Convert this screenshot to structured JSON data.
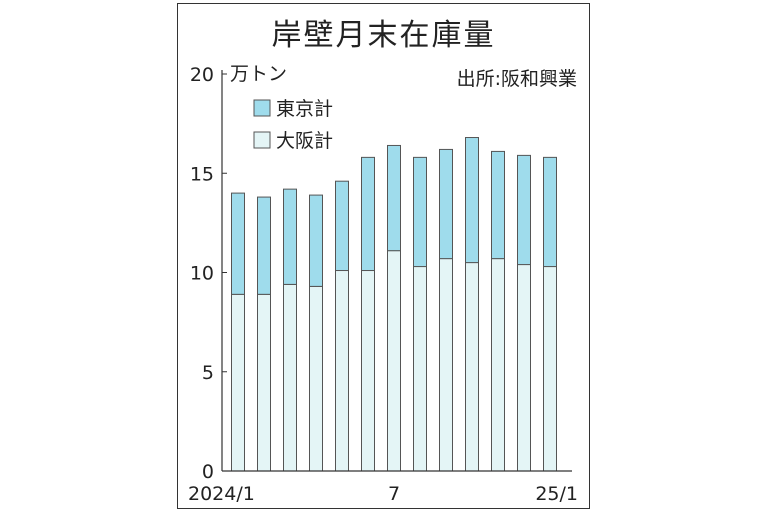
{
  "chart_data": {
    "type": "bar",
    "stacked": true,
    "title": "岸壁月末在庫量",
    "source": "出所:阪和興業",
    "ylabel": "万トン",
    "ylim": [
      0,
      20
    ],
    "yticks": [
      0,
      5,
      10,
      15,
      20
    ],
    "x_tick_labels": [
      {
        "index": 0,
        "label": "2024/1"
      },
      {
        "index": 6,
        "label": "7"
      },
      {
        "index": 12,
        "label": "25/1"
      }
    ],
    "categories": [
      "2024/1",
      "2024/2",
      "2024/3",
      "2024/4",
      "2024/5",
      "2024/6",
      "2024/7",
      "2024/8",
      "2024/9",
      "2024/10",
      "2024/11",
      "2024/12",
      "2025/1"
    ],
    "series": [
      {
        "name": "大阪計",
        "color": "#e4f5f6",
        "values": [
          8.9,
          8.9,
          9.4,
          9.3,
          10.1,
          10.1,
          11.1,
          10.3,
          10.7,
          10.5,
          10.7,
          10.4,
          10.3
        ]
      },
      {
        "name": "東京計",
        "color": "#9fdcec",
        "values": [
          5.1,
          4.9,
          4.8,
          4.6,
          4.5,
          5.7,
          5.3,
          5.5,
          5.5,
          6.3,
          5.4,
          5.5,
          5.5
        ]
      }
    ],
    "legend_position": "top-left",
    "grid": false
  }
}
